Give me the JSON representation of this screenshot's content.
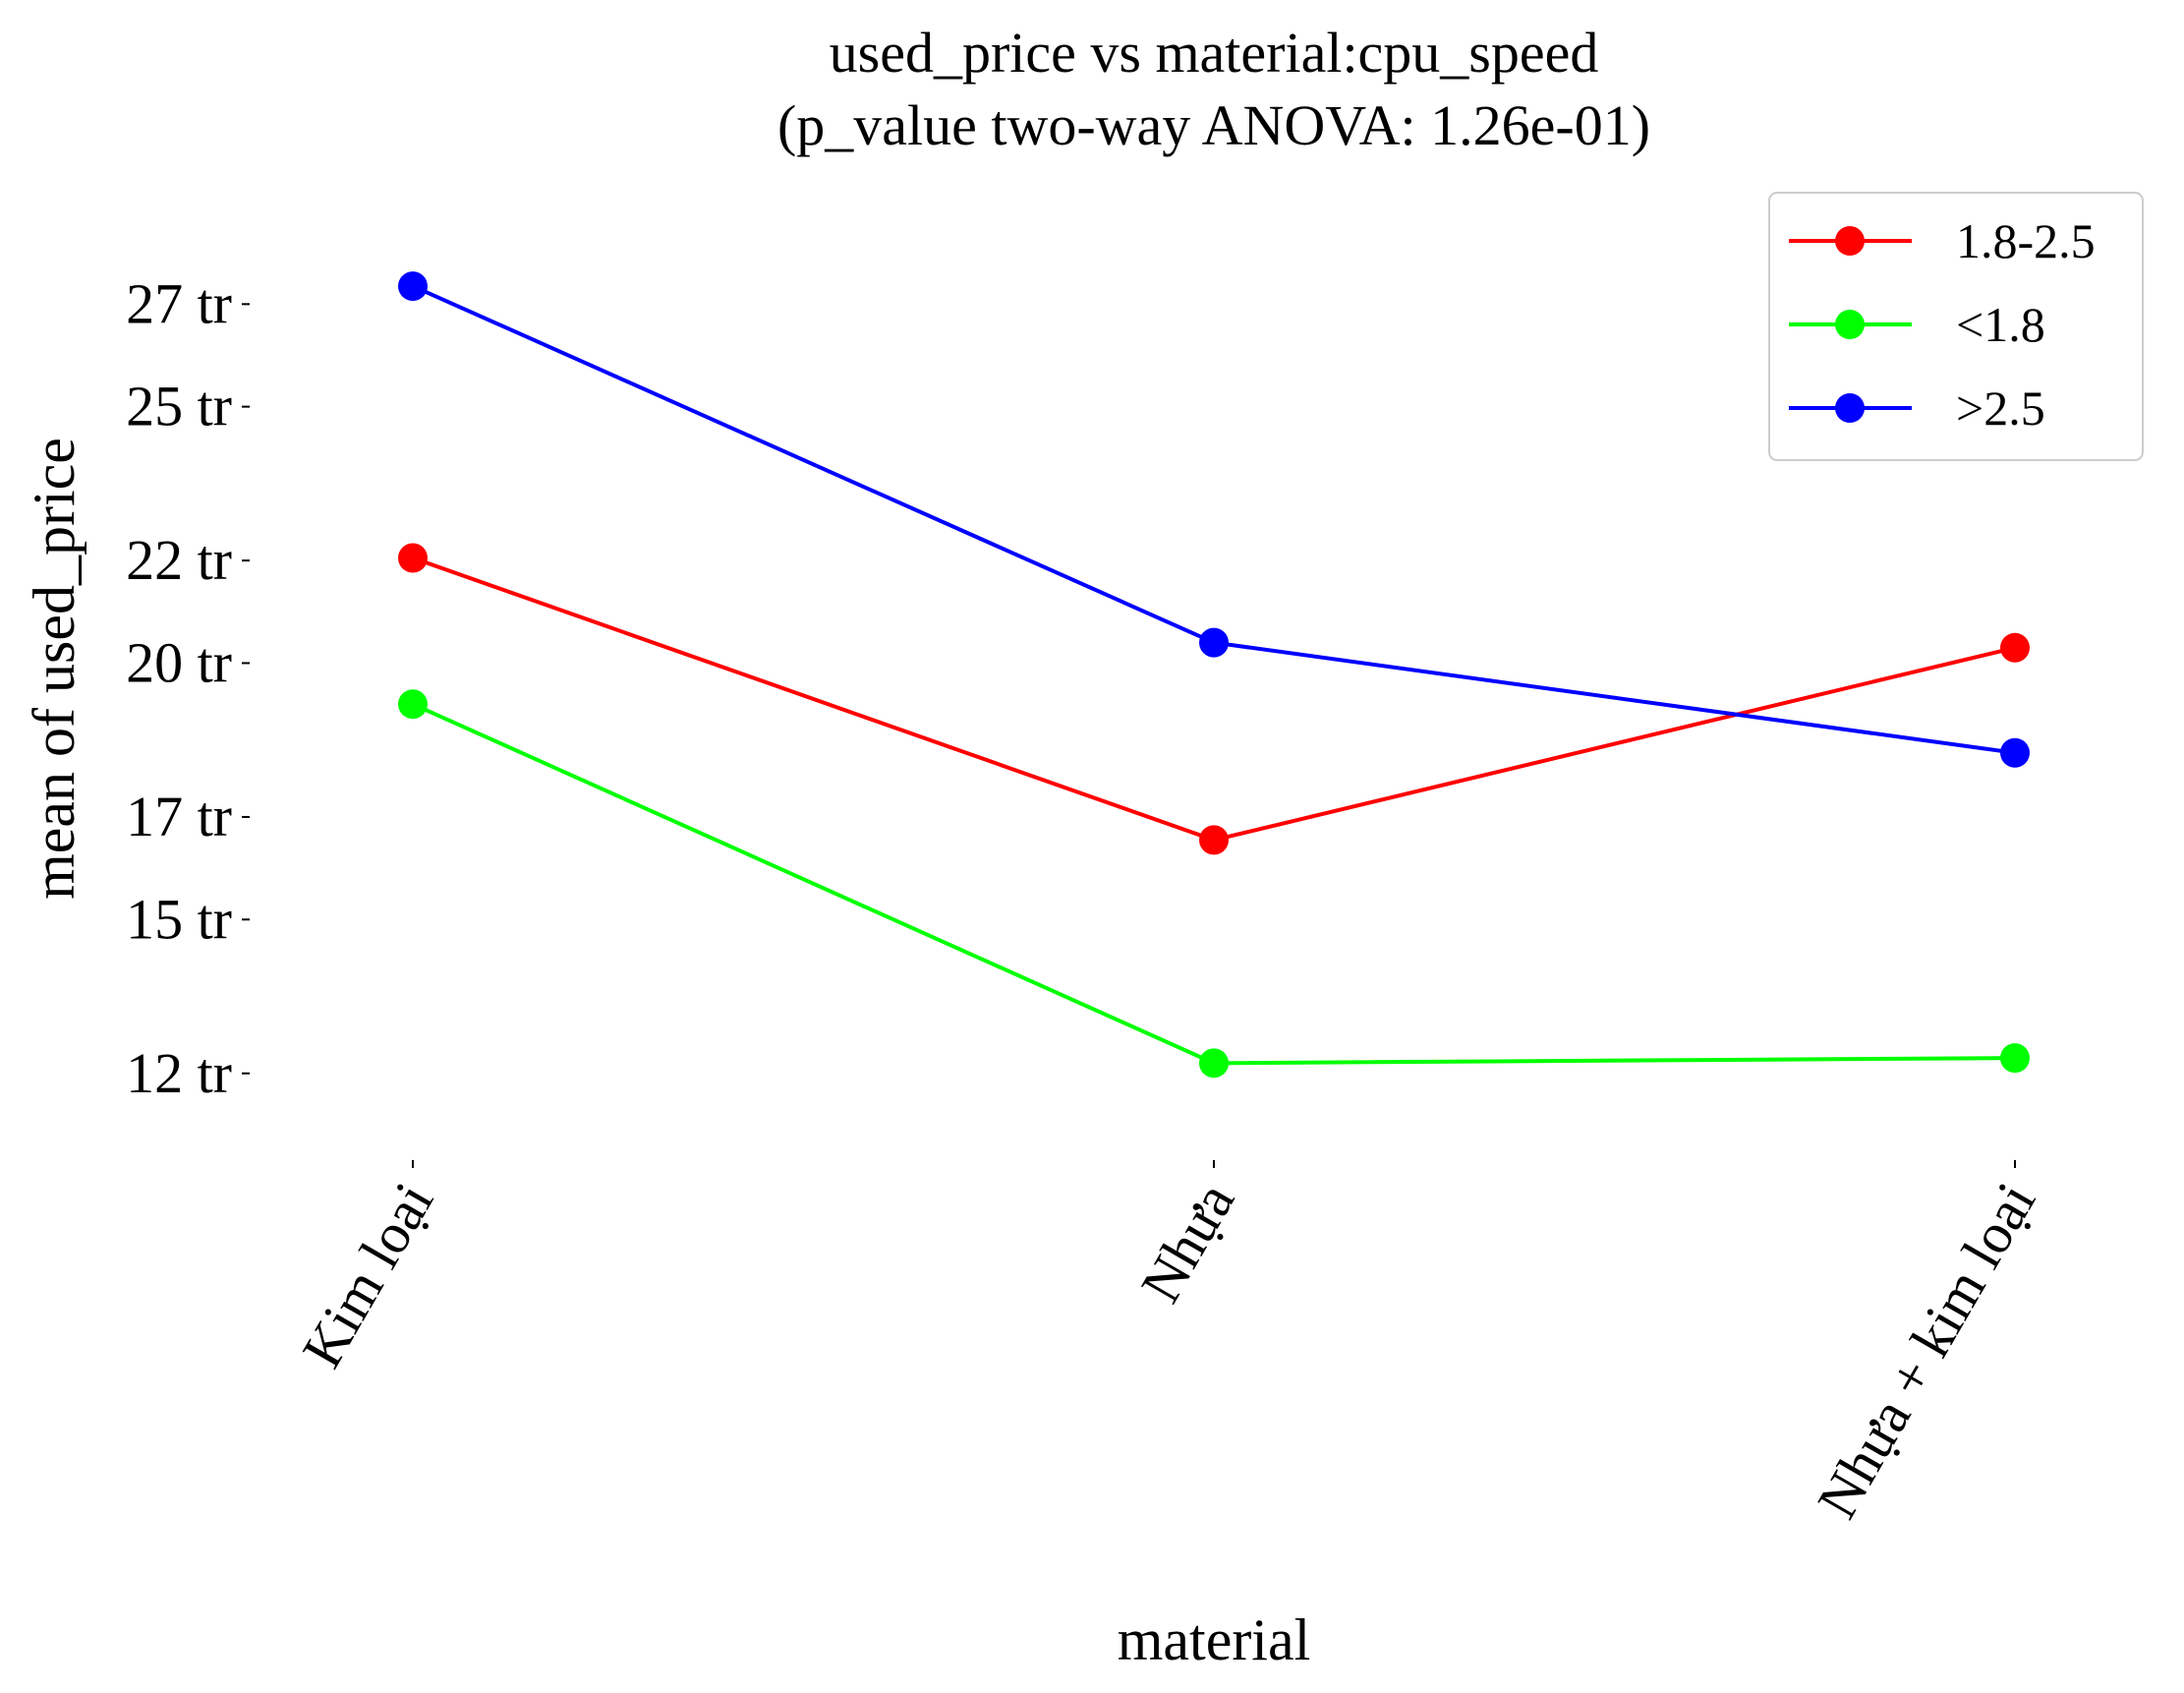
{
  "chart_data": {
    "type": "line",
    "title": "used_price vs material:cpu_speed",
    "subtitle": "(p_value two-way ANOVA: 1.26e-01)",
    "xlabel": "material",
    "ylabel": "mean of used_price",
    "categories": [
      "Kim loại",
      "Nhựa",
      "Nhựa + kim loại"
    ],
    "yticks": [
      12,
      15,
      17,
      20,
      22,
      25,
      27
    ],
    "ytick_labels": [
      "12 tr",
      "15 tr",
      "17 tr",
      "20 tr",
      "22 tr",
      "25 tr",
      "27 tr"
    ],
    "ylim": [
      10.5,
      29.0
    ],
    "grid": false,
    "legend_position": "top-right",
    "series": [
      {
        "name": "1.8-2.5",
        "color": "#ff0000",
        "values": [
          22.05,
          16.55,
          20.3
        ]
      },
      {
        "name": "<1.8",
        "color": "#00ff00",
        "values": [
          19.2,
          12.2,
          12.3
        ]
      },
      {
        "name": ">2.5",
        "color": "#0000ff",
        "values": [
          27.35,
          20.4,
          18.25
        ]
      }
    ]
  }
}
